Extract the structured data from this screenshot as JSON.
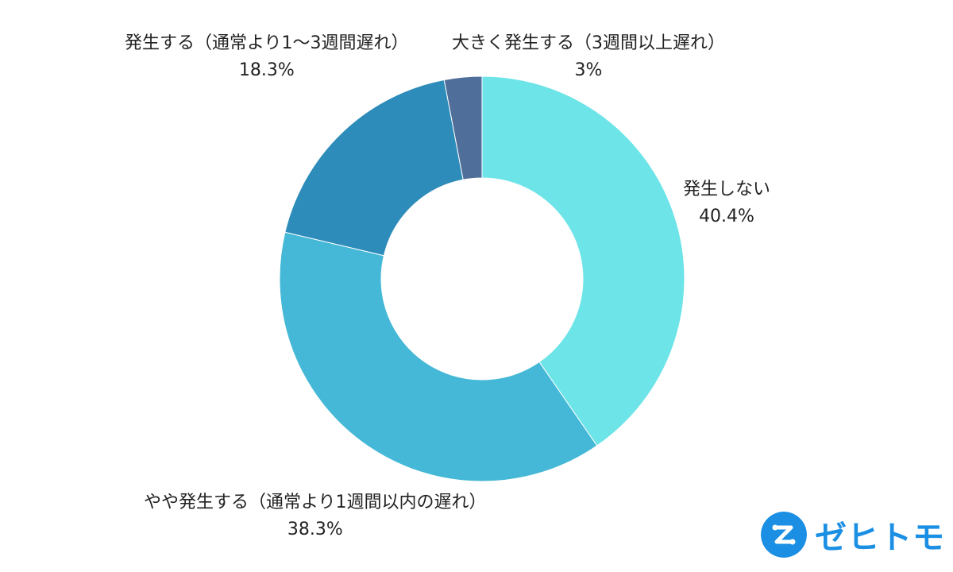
{
  "chart_data": {
    "type": "pie",
    "variant": "donut",
    "start_angle_deg": 0,
    "direction": "clockwise",
    "slices": [
      {
        "label": "発生しない",
        "value": 40.4,
        "value_label": "40.4%",
        "color": "#6ce4e8"
      },
      {
        "label": "やや発生する（通常より1週間以内の遅れ）",
        "value": 38.3,
        "value_label": "38.3%",
        "color": "#44b8d6"
      },
      {
        "label": "発生する（通常より1〜3週間遅れ）",
        "value": 18.3,
        "value_label": "18.3%",
        "color": "#2e8cba"
      },
      {
        "label": "大きく発生する（3週間以上遅れ）",
        "value": 3,
        "value_label": "3%",
        "color": "#4f6e99"
      }
    ]
  },
  "brand": {
    "name": "ゼヒトモ",
    "logo_icon": "z-circle-logo",
    "color": "#1a8fe3"
  }
}
